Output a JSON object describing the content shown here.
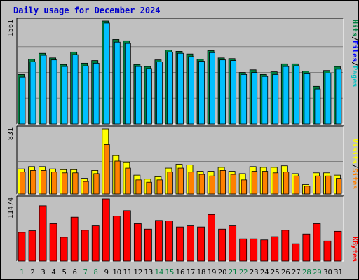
{
  "title": "Daily usage for December 2024",
  "chart_data": [
    {
      "type": "bar",
      "name": "hits-files-pages-panel",
      "max_label": "1561",
      "ylim": [
        0,
        1561
      ],
      "legend": [
        "Pages",
        "/",
        "Files",
        "/",
        "Hits"
      ],
      "categories": [
        "1",
        "2",
        "3",
        "4",
        "5",
        "6",
        "7",
        "8",
        "9",
        "10",
        "11",
        "12",
        "13",
        "14",
        "15",
        "16",
        "17",
        "18",
        "19",
        "20",
        "21",
        "22",
        "23",
        "24",
        "25",
        "26",
        "27",
        "28",
        "29",
        "30",
        "31"
      ],
      "series": [
        {
          "name": "Hits",
          "values": [
            750,
            980,
            1070,
            1000,
            900,
            1090,
            920,
            960,
            1561,
            1280,
            1260,
            900,
            870,
            970,
            1120,
            1100,
            1060,
            980,
            1110,
            1000,
            990,
            780,
            820,
            750,
            790,
            910,
            910,
            800,
            570,
            810,
            870
          ],
          "color": "#008040"
        },
        {
          "name": "Files",
          "values": [
            710,
            940,
            1040,
            970,
            870,
            1050,
            880,
            920,
            1530,
            1240,
            1220,
            870,
            840,
            940,
            1090,
            1070,
            1020,
            950,
            1080,
            970,
            960,
            750,
            780,
            720,
            750,
            870,
            880,
            760,
            530,
            770,
            830
          ],
          "color": "#00c0ff"
        },
        {
          "name": "Pages",
          "values": [
            0,
            0,
            0,
            0,
            0,
            0,
            0,
            0,
            0,
            0,
            0,
            0,
            0,
            0,
            0,
            0,
            0,
            0,
            0,
            0,
            0,
            0,
            0,
            0,
            0,
            0,
            0,
            0,
            0,
            0,
            0
          ],
          "color": "#00c0c0"
        }
      ]
    },
    {
      "type": "bar",
      "name": "visits-sites-panel",
      "max_label": "831",
      "ylim": [
        0,
        831
      ],
      "legend": [
        "Visits",
        "/",
        "Sites"
      ],
      "categories": [
        "1",
        "2",
        "3",
        "4",
        "5",
        "6",
        "7",
        "8",
        "9",
        "10",
        "11",
        "12",
        "13",
        "14",
        "15",
        "16",
        "17",
        "18",
        "19",
        "20",
        "21",
        "22",
        "23",
        "24",
        "25",
        "26",
        "27",
        "28",
        "29",
        "30",
        "31"
      ],
      "series": [
        {
          "name": "Visits",
          "values": [
            320,
            350,
            350,
            320,
            310,
            310,
            200,
            300,
            831,
            490,
            400,
            240,
            190,
            220,
            330,
            380,
            370,
            290,
            290,
            340,
            290,
            260,
            350,
            340,
            340,
            360,
            260,
            120,
            270,
            270,
            240
          ],
          "color": "#ffff00"
        },
        {
          "name": "Sites",
          "values": [
            280,
            300,
            300,
            280,
            270,
            270,
            160,
            260,
            630,
            420,
            330,
            180,
            150,
            180,
            280,
            330,
            280,
            250,
            230,
            300,
            250,
            180,
            290,
            290,
            270,
            280,
            230,
            100,
            230,
            230,
            200
          ],
          "color": "#ff8000"
        }
      ]
    },
    {
      "type": "bar",
      "name": "kbytes-panel",
      "max_label": "11474",
      "ylim": [
        0,
        11474
      ],
      "legend": [
        "KBytes"
      ],
      "categories": [
        "1",
        "2",
        "3",
        "4",
        "5",
        "6",
        "7",
        "8",
        "9",
        "10",
        "11",
        "12",
        "13",
        "14",
        "15",
        "16",
        "17",
        "18",
        "19",
        "20",
        "21",
        "22",
        "23",
        "24",
        "25",
        "26",
        "27",
        "28",
        "29",
        "30",
        "31"
      ],
      "series": [
        {
          "name": "KBytes",
          "values": [
            5300,
            5600,
            10200,
            6900,
            4400,
            8100,
            5700,
            6500,
            11474,
            8300,
            9300,
            6900,
            5900,
            7500,
            7400,
            6300,
            6500,
            6300,
            8600,
            5900,
            6500,
            4100,
            4100,
            3900,
            4500,
            5700,
            3200,
            5000,
            6900,
            3700,
            5500
          ],
          "color": "#ff0000"
        }
      ]
    }
  ],
  "x_labels": [
    "1",
    "2",
    "3",
    "4",
    "5",
    "6",
    "7",
    "8",
    "9",
    "10",
    "11",
    "12",
    "13",
    "14",
    "15",
    "16",
    "17",
    "18",
    "19",
    "20",
    "21",
    "22",
    "23",
    "24",
    "25",
    "26",
    "27",
    "28",
    "29",
    "30",
    "31"
  ],
  "x_label_colors": [
    "#008040",
    "#000000",
    "#000000",
    "#000000",
    "#000000",
    "#000000",
    "#008040",
    "#008040",
    "#000000",
    "#000000",
    "#000000",
    "#000000",
    "#000000",
    "#008040",
    "#008040",
    "#000000",
    "#000000",
    "#000000",
    "#000000",
    "#000000",
    "#008040",
    "#008040",
    "#000000",
    "#000000",
    "#000000",
    "#000000",
    "#000000",
    "#008040",
    "#008040",
    "#000000",
    "#000000"
  ],
  "colors": {
    "background": "#c0c0c0",
    "title": "#0000cc",
    "pages": "#00c0c0",
    "files": "#0000ff",
    "hits": "#008040",
    "visits": "#ffff00",
    "sites": "#ff8000",
    "kbytes": "#ff0000"
  }
}
